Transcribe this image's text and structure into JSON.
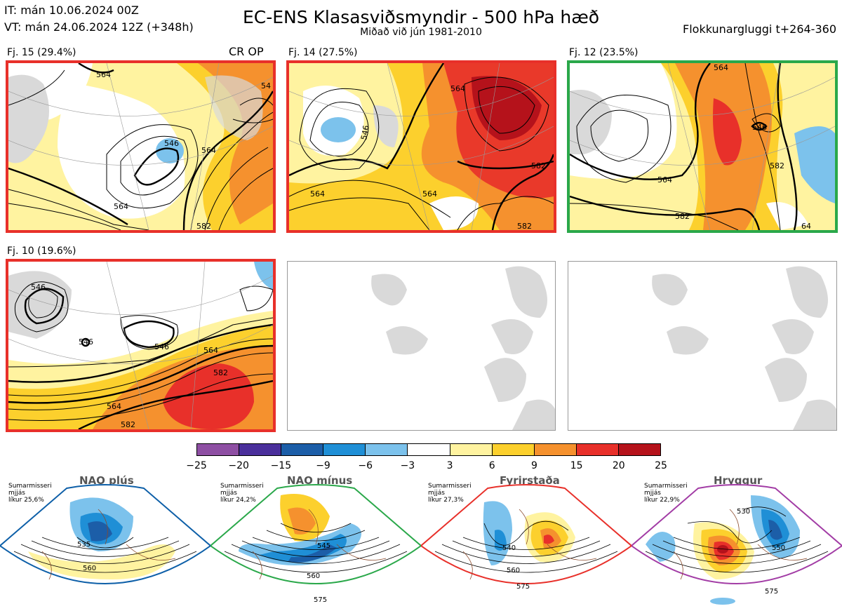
{
  "header": {
    "it_line": "IT: mán 10.06.2024 00Z",
    "vt_line": "VT: mán 24.06.2024 12Z  (+348h)",
    "title": "EC-ENS Klasasviðsmyndir - 500 hPa hæð",
    "subtitle": "Miðað við jún 1981-2010",
    "window": "Flokkunargluggi t+264-360"
  },
  "panels": [
    {
      "label": "Fj. 15 (29.4%)",
      "tag": "CR OP",
      "frame_color": "#e8302a"
    },
    {
      "label": "Fj. 14 (27.5%)",
      "tag": "",
      "frame_color": "#e8302a"
    },
    {
      "label": "Fj. 12 (23.5%)",
      "tag": "",
      "frame_color": "#2aa84a"
    },
    {
      "label": "Fj. 10 (19.6%)",
      "tag": "",
      "frame_color": "#e8302a"
    }
  ],
  "contour_labels": {
    "p1": [
      "546",
      "564",
      "564",
      "564",
      "582",
      "54"
    ],
    "p2": [
      "546",
      "564",
      "564",
      "564",
      "582",
      "582"
    ],
    "p3": [
      "546",
      "564",
      "564",
      "582",
      "582",
      "64"
    ],
    "p4": [
      "546",
      "546",
      "546",
      "564",
      "564",
      "582",
      "582"
    ]
  },
  "colorbar": {
    "ticks": [
      "−25",
      "−20",
      "−15",
      "−9",
      "−6",
      "−3",
      "3",
      "6",
      "9",
      "15",
      "20",
      "25"
    ],
    "colors": [
      "#8e4fa3",
      "#4a2f9b",
      "#1c5ea8",
      "#1f8fd6",
      "#7cc2ec",
      "#ffffff",
      "#fff3a0",
      "#fcd02d",
      "#f5912e",
      "#e8302a",
      "#b5121b"
    ]
  },
  "regimes": [
    {
      "title": "NAO plús",
      "info": [
        "Sumarmisseri",
        "mjjás",
        "líkur 25,6%"
      ],
      "color": "#0d5fa8",
      "labels": [
        "535",
        "560"
      ]
    },
    {
      "title": "NAO mínus",
      "info": [
        "Sumarmisseri",
        "mjjás",
        "líkur 24,2%"
      ],
      "color": "#2aa84a",
      "labels": [
        "545",
        "560",
        "575"
      ]
    },
    {
      "title": "Fyrirstaða",
      "info": [
        "Sumarmisseri",
        "mjjás",
        "líkur 27,3%"
      ],
      "color": "#e8302a",
      "labels": [
        "540",
        "560",
        "575"
      ]
    },
    {
      "title": "Hryggur",
      "info": [
        "Sumarmisseri",
        "mjjás",
        "líkur 22,9%"
      ],
      "color": "#a23ca5",
      "labels": [
        "530",
        "550",
        "575"
      ]
    }
  ]
}
